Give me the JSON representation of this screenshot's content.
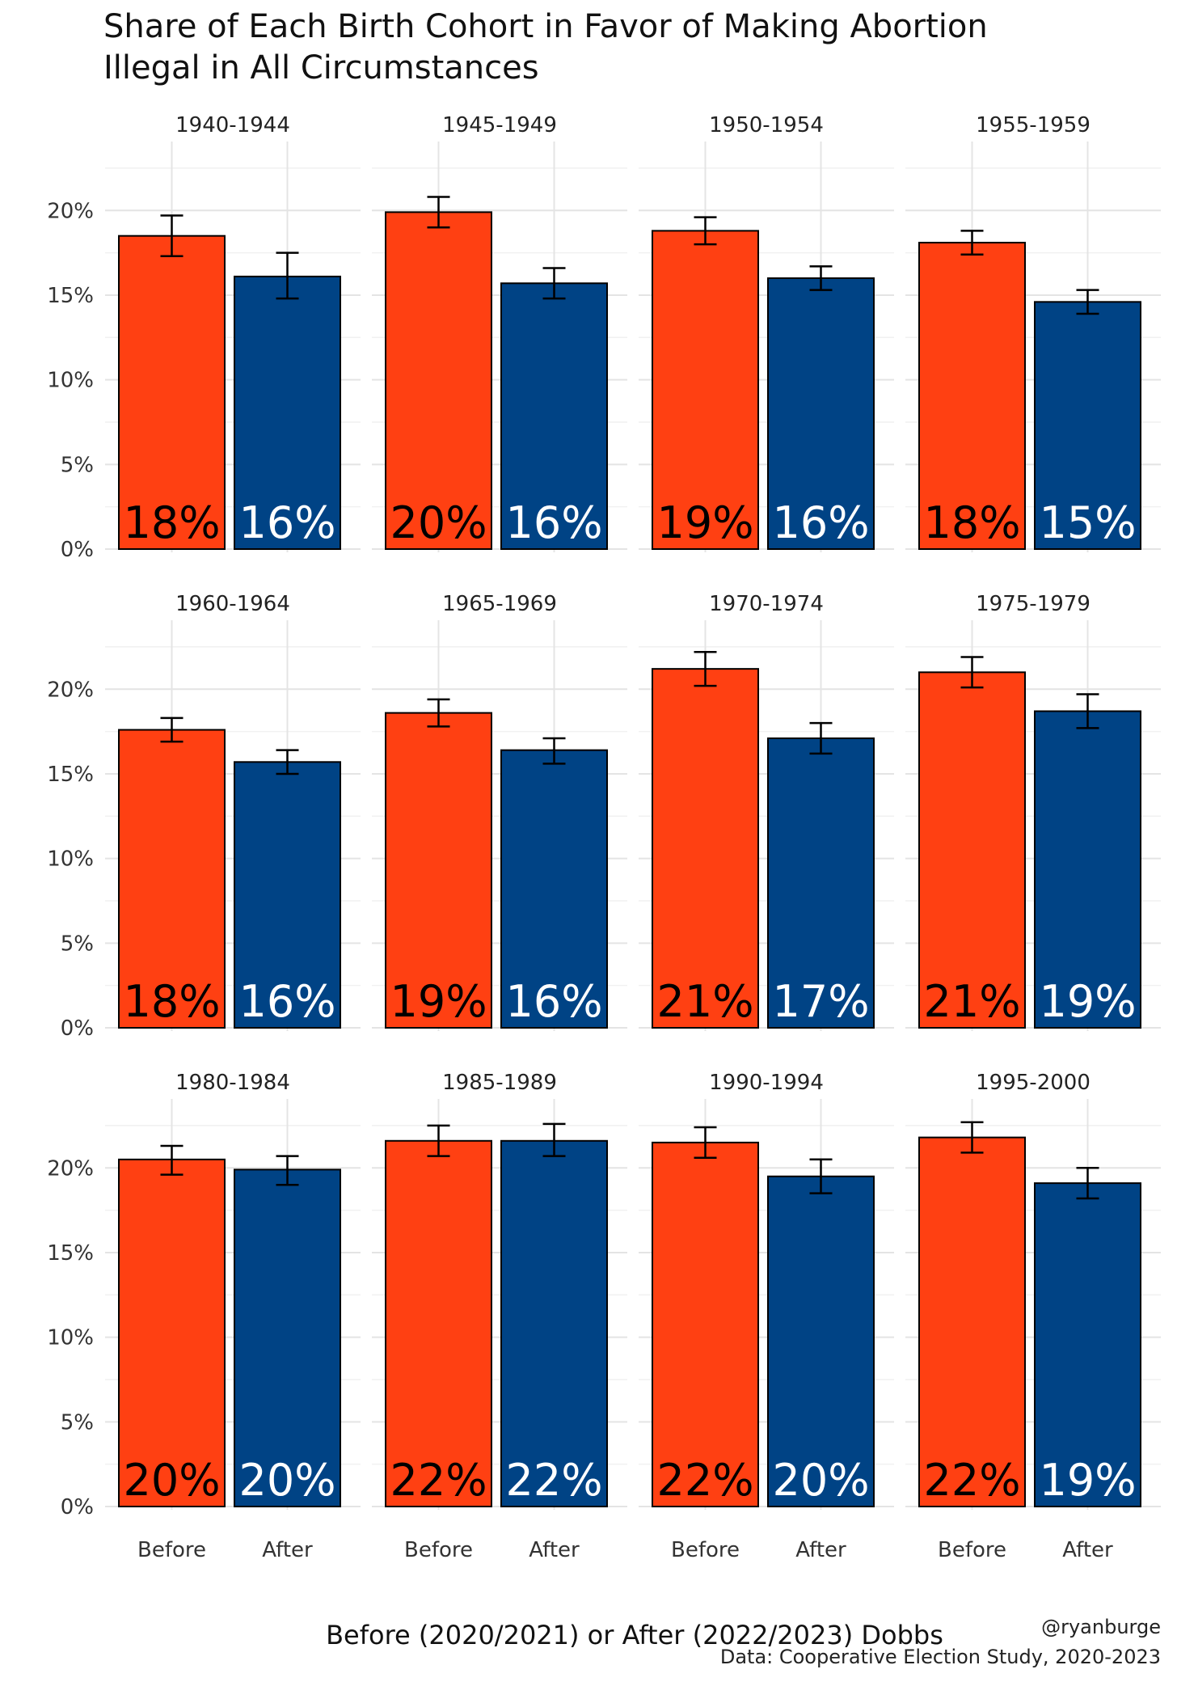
{
  "chart_data": {
    "type": "bar",
    "title": "Share of Each Birth Cohort in Favor of Making Abortion Illegal in All Circumstances",
    "title_lines": [
      "Share of Each Birth Cohort in Favor of Making Abortion",
      "Illegal in All Circumstances"
    ],
    "xlabel": "Before (2020/2021) or After (2022/2023) Dobbs",
    "ylabel": "",
    "categories": [
      "Before",
      "After"
    ],
    "ylim": [
      0,
      0.235
    ],
    "yticks": [
      0,
      0.05,
      0.1,
      0.15,
      0.2
    ],
    "ytick_labels": [
      "0%",
      "5%",
      "10%",
      "15%",
      "20%"
    ],
    "grid": true,
    "legend": "none",
    "colors": {
      "Before": "#FF4012",
      "After": "#004385"
    },
    "label_colors": {
      "Before": "#000000",
      "After": "#ffffff"
    },
    "caption": [
      "@ryanburge",
      "Data: Cooperative Election Study, 2020-2023"
    ],
    "panels": [
      {
        "facet": "1940-1944",
        "values": [
          0.185,
          0.161
        ],
        "error_low": [
          0.173,
          0.148
        ],
        "error_high": [
          0.197,
          0.175
        ],
        "labels": [
          "18%",
          "16%"
        ]
      },
      {
        "facet": "1945-1949",
        "values": [
          0.199,
          0.157
        ],
        "error_low": [
          0.19,
          0.148
        ],
        "error_high": [
          0.208,
          0.166
        ],
        "labels": [
          "20%",
          "16%"
        ]
      },
      {
        "facet": "1950-1954",
        "values": [
          0.188,
          0.16
        ],
        "error_low": [
          0.18,
          0.153
        ],
        "error_high": [
          0.196,
          0.167
        ],
        "labels": [
          "19%",
          "16%"
        ]
      },
      {
        "facet": "1955-1959",
        "values": [
          0.181,
          0.146
        ],
        "error_low": [
          0.174,
          0.139
        ],
        "error_high": [
          0.188,
          0.153
        ],
        "labels": [
          "18%",
          "15%"
        ]
      },
      {
        "facet": "1960-1964",
        "values": [
          0.176,
          0.157
        ],
        "error_low": [
          0.169,
          0.15
        ],
        "error_high": [
          0.183,
          0.164
        ],
        "labels": [
          "18%",
          "16%"
        ]
      },
      {
        "facet": "1965-1969",
        "values": [
          0.186,
          0.164
        ],
        "error_low": [
          0.178,
          0.156
        ],
        "error_high": [
          0.194,
          0.171
        ],
        "labels": [
          "19%",
          "16%"
        ]
      },
      {
        "facet": "1970-1974",
        "values": [
          0.212,
          0.171
        ],
        "error_low": [
          0.202,
          0.162
        ],
        "error_high": [
          0.222,
          0.18
        ],
        "labels": [
          "21%",
          "17%"
        ]
      },
      {
        "facet": "1975-1979",
        "values": [
          0.21,
          0.187
        ],
        "error_low": [
          0.201,
          0.177
        ],
        "error_high": [
          0.219,
          0.197
        ],
        "labels": [
          "21%",
          "19%"
        ]
      },
      {
        "facet": "1980-1984",
        "values": [
          0.205,
          0.199
        ],
        "error_low": [
          0.196,
          0.19
        ],
        "error_high": [
          0.213,
          0.207
        ],
        "labels": [
          "20%",
          "20%"
        ]
      },
      {
        "facet": "1985-1989",
        "values": [
          0.216,
          0.216
        ],
        "error_low": [
          0.207,
          0.207
        ],
        "error_high": [
          0.225,
          0.226
        ],
        "labels": [
          "22%",
          "22%"
        ]
      },
      {
        "facet": "1990-1994",
        "values": [
          0.215,
          0.195
        ],
        "error_low": [
          0.206,
          0.185
        ],
        "error_high": [
          0.224,
          0.205
        ],
        "labels": [
          "22%",
          "20%"
        ]
      },
      {
        "facet": "1995-2000",
        "values": [
          0.218,
          0.191
        ],
        "error_low": [
          0.209,
          0.182
        ],
        "error_high": [
          0.227,
          0.2
        ],
        "labels": [
          "22%",
          "19%"
        ]
      }
    ]
  }
}
